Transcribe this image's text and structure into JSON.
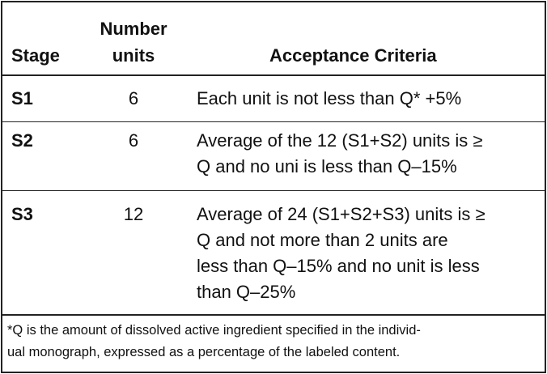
{
  "table": {
    "headers": {
      "stage": "Stage",
      "number": [
        "Number",
        "units"
      ],
      "criteria": "Acceptance Criteria"
    },
    "rows": [
      {
        "stage": "S1",
        "number": "6",
        "criteria": [
          "Each unit is not less than Q* +5%"
        ]
      },
      {
        "stage": "S2",
        "number": "6",
        "criteria": [
          "Average of the 12 (S1+S2) units is ≥",
          "Q and no uni is less than Q–15%"
        ]
      },
      {
        "stage": "S3",
        "number": "12",
        "criteria": [
          "Average of 24 (S1+S2+S3) units is ≥",
          "Q and not more than 2 units are",
          "less than Q–15% and no unit is less",
          "than Q–25%"
        ]
      }
    ],
    "footnote": [
      "*Q is the amount of dissolved active ingredient specified in the individ-",
      "ual monograph, expressed as a percentage of the labeled content."
    ]
  }
}
